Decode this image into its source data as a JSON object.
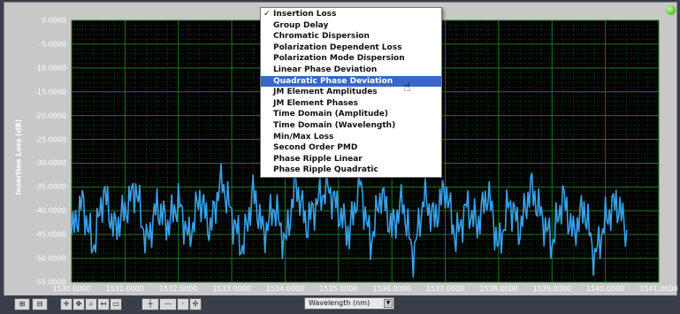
{
  "chart": {
    "ylabel": "Insertion Loss (dB)",
    "y_ticks": [
      "0.0000",
      "-5.0000",
      "-10.0000",
      "-15.0000",
      "-20.0000",
      "-25.0000",
      "-30.0000",
      "-35.0000",
      "-40.0000",
      "-45.0000",
      "-50.0000",
      "-55.0000"
    ],
    "x_ticks": [
      "1530.0000",
      "1531.0000",
      "1532.0000",
      "1533.0000",
      "1534.0000",
      "1535.0000",
      "1536.0000",
      "1537.0000",
      "1538.0000",
      "1539.0000",
      "1540.0000",
      "1541.0000"
    ],
    "trace_color": "#3aa0e8",
    "grid_color": "#1f7a1f",
    "background_color": "#000000"
  },
  "chart_data": {
    "type": "line",
    "xlabel": "Wavelength (nm)",
    "ylabel": "Insertion Loss (dB)",
    "xlim": [
      1530,
      1541
    ],
    "ylim": [
      -55,
      0
    ],
    "grid": true,
    "series": [
      {
        "x": [
          1530.0,
          1530.2,
          1530.4,
          1530.6,
          1530.8,
          1531.0,
          1531.2,
          1531.4,
          1531.6,
          1531.8,
          1532.0,
          1532.2,
          1532.4,
          1532.6,
          1532.8,
          1533.0,
          1533.2,
          1533.4,
          1533.6,
          1533.8,
          1534.0,
          1534.2,
          1534.4,
          1534.6,
          1534.8,
          1535.0,
          1535.2,
          1535.4,
          1535.6,
          1535.8,
          1536.0,
          1536.2,
          1536.4,
          1536.6,
          1536.8,
          1537.0,
          1537.2,
          1537.4,
          1537.6,
          1537.8,
          1538.0,
          1538.2,
          1538.4,
          1538.6,
          1538.8,
          1539.0,
          1539.2,
          1539.4,
          1539.6,
          1539.8,
          1540.0,
          1540.2,
          1540.4
        ],
        "values": [
          -45,
          -38,
          -48,
          -36,
          -44,
          -40,
          -35,
          -47,
          -39,
          -43,
          -38,
          -46,
          -37,
          -44,
          -33,
          -41,
          -48,
          -36,
          -45,
          -39,
          -47,
          -34,
          -43,
          -38,
          -35,
          -40,
          -45,
          -34,
          -47,
          -36,
          -44,
          -38,
          -50,
          -37,
          -42,
          -35,
          -46,
          -39,
          -43,
          -36,
          -48,
          -38,
          -44,
          -35,
          -41,
          -47,
          -37,
          -45,
          -39,
          -50,
          -42,
          -38,
          -44
        ]
      }
    ]
  },
  "menu": {
    "items": [
      {
        "label": "Insertion Loss",
        "checked": true
      },
      {
        "label": "Group Delay"
      },
      {
        "label": "Chromatic Dispersion"
      },
      {
        "label": "Polarization Dependent Loss"
      },
      {
        "label": "Polarization Mode Dispersion"
      },
      {
        "label": "Linear Phase Deviation"
      },
      {
        "label": "Quadratic Phase Deviation",
        "selected": true
      },
      {
        "label": "JM Element Amplitudes"
      },
      {
        "label": "JM Element Phases"
      },
      {
        "label": "Time Domain (Amplitude)"
      },
      {
        "label": "Time Domain (Wavelength)"
      },
      {
        "label": "Min/Max Loss"
      },
      {
        "label": "Second Order PMD"
      },
      {
        "label": "Phase Ripple Linear"
      },
      {
        "label": "Phase Ripple Quadratic"
      }
    ],
    "check_glyph": "✓"
  },
  "toolbar": {
    "axis_select_value": "Wavelength (nm)"
  }
}
